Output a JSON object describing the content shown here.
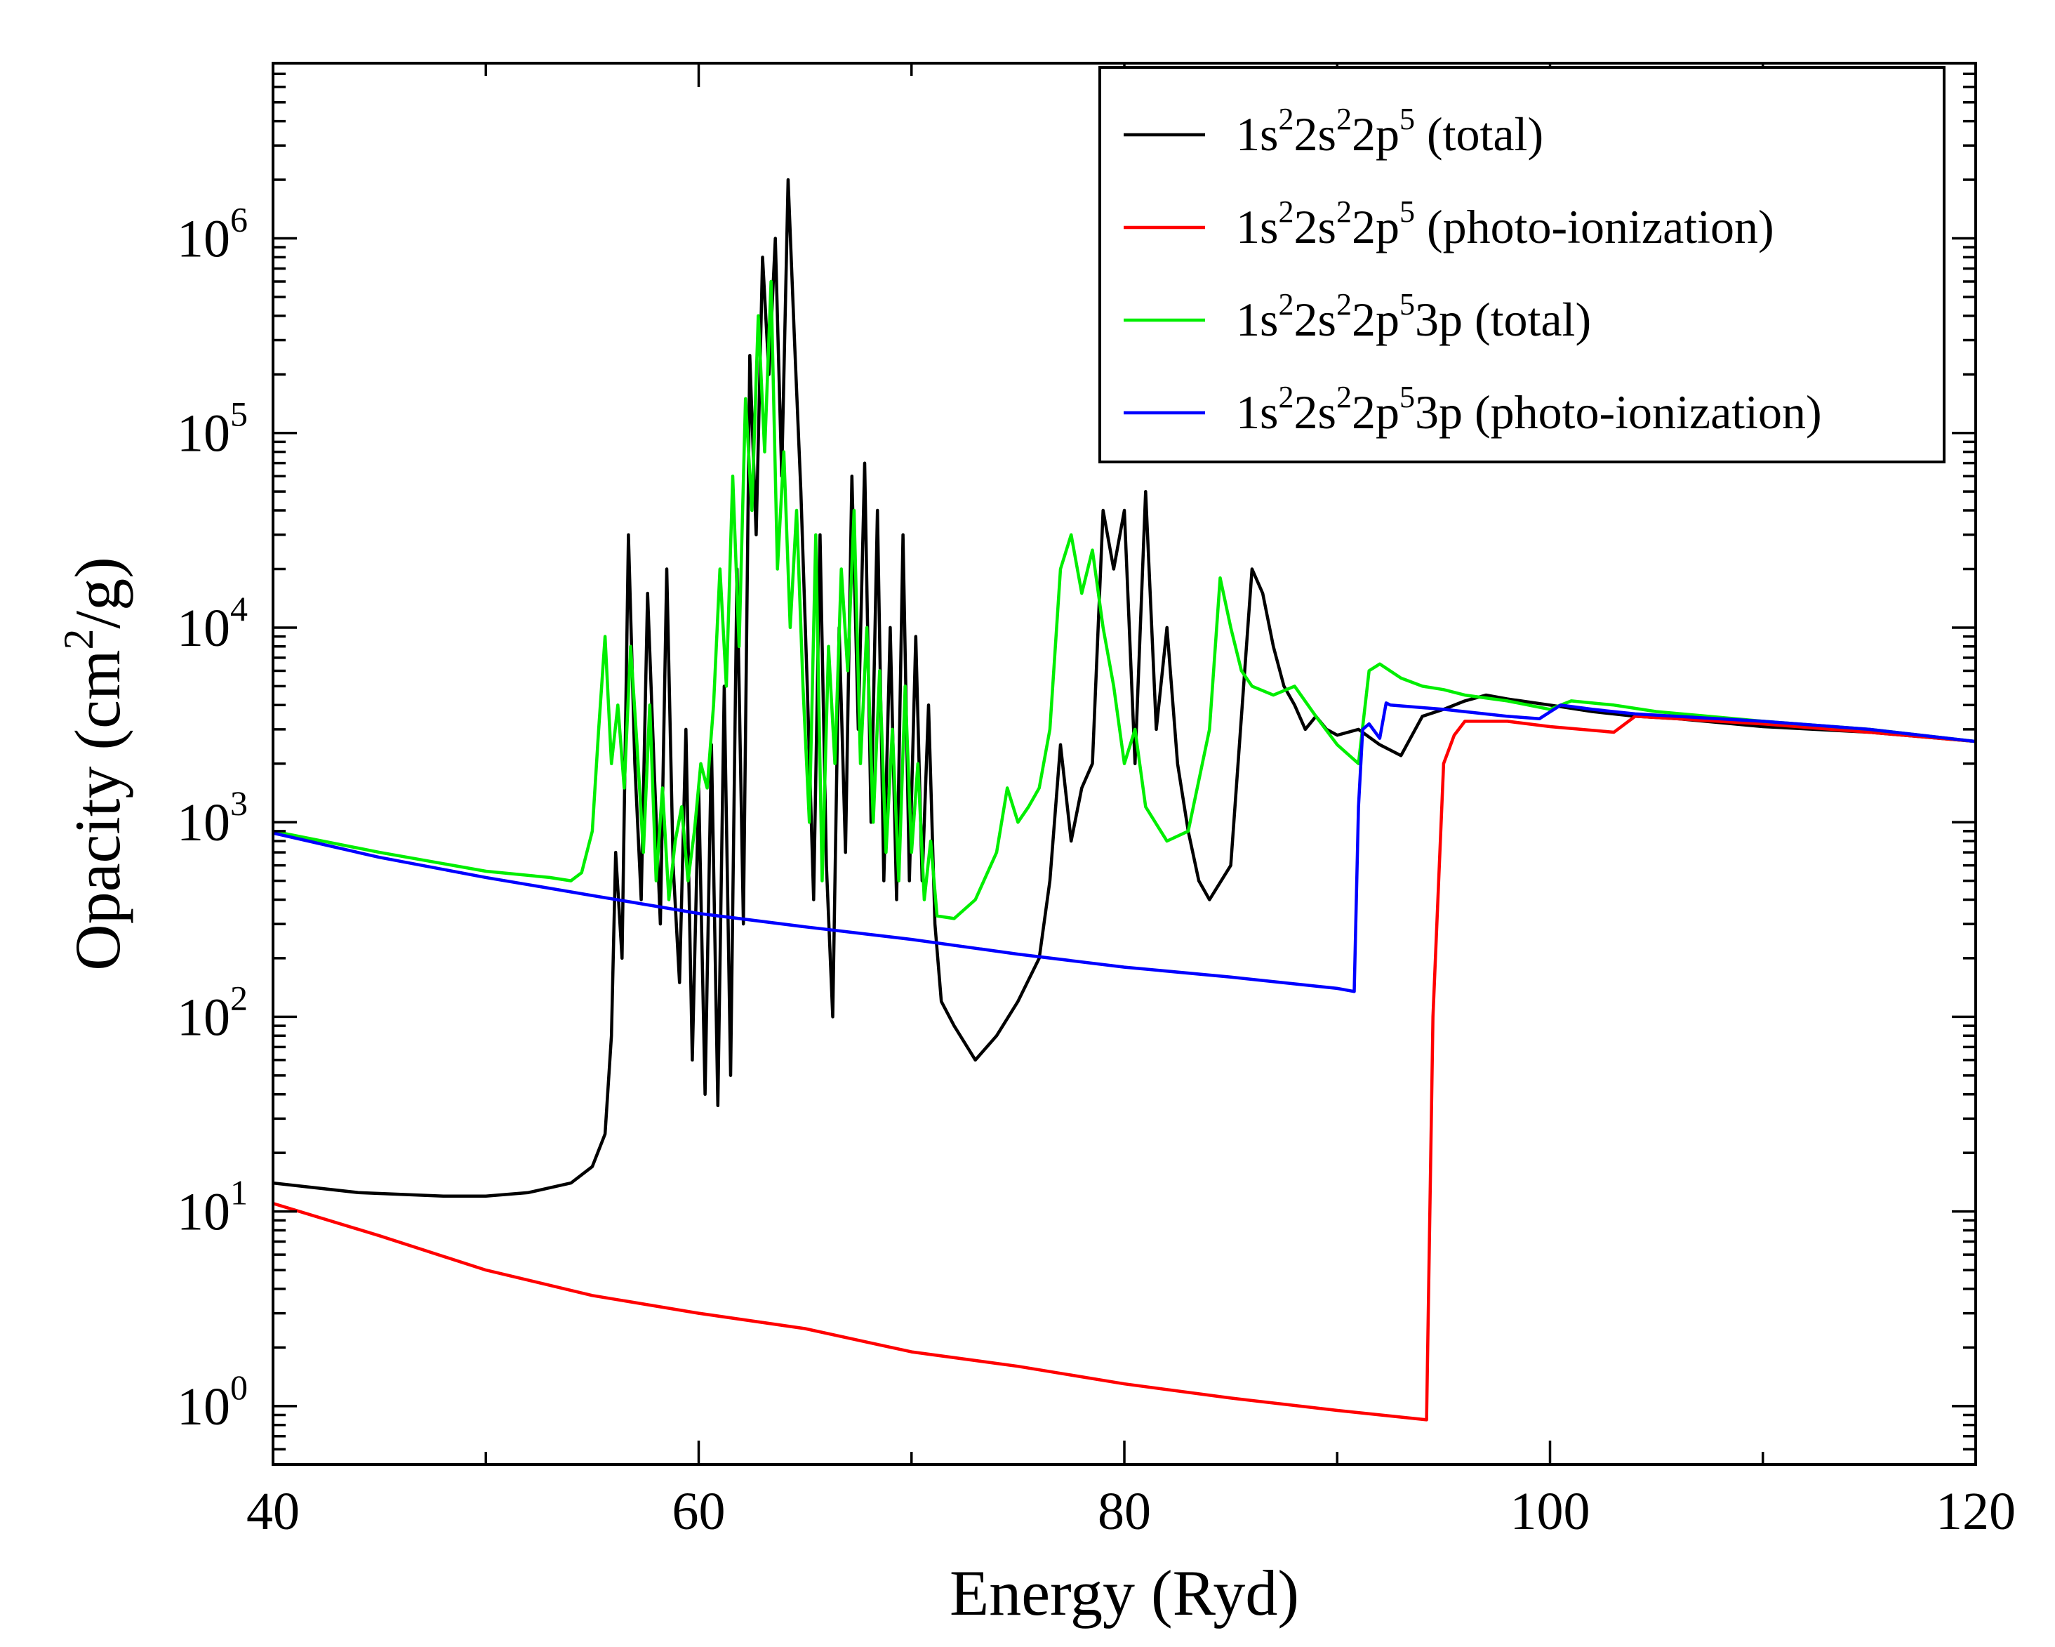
{
  "chart_data": {
    "type": "line",
    "title": "",
    "xlabel": "Energy (Ryd)",
    "ylabel": {
      "prefix": "Opacity (cm",
      "sup": "2",
      "suffix": "/g)"
    },
    "xlim": [
      40,
      120
    ],
    "ylim_log10": [
      -0.3,
      6.9
    ],
    "yscale": "log",
    "x_ticks": [
      40,
      60,
      80,
      100,
      120
    ],
    "x_tick_labels": [
      "40",
      "60",
      "80",
      "100",
      "120"
    ],
    "y_ticks_log10": [
      0,
      1,
      2,
      3,
      4,
      5,
      6
    ],
    "y_tick_labels": [
      {
        "base": "10",
        "exp": "0"
      },
      {
        "base": "10",
        "exp": "1"
      },
      {
        "base": "10",
        "exp": "2"
      },
      {
        "base": "10",
        "exp": "3"
      },
      {
        "base": "10",
        "exp": "4"
      },
      {
        "base": "10",
        "exp": "5"
      },
      {
        "base": "10",
        "exp": "6"
      }
    ],
    "legend_position": "top-right",
    "series": [
      {
        "name": "1s22s22p5 (total)",
        "label": [
          {
            "t": "1s"
          },
          {
            "t": "2",
            "sup": true
          },
          {
            "t": "2s"
          },
          {
            "t": "2",
            "sup": true
          },
          {
            "t": "2p"
          },
          {
            "t": "5",
            "sup": true
          },
          {
            "t": " (total)"
          }
        ],
        "color": "#000000",
        "x": [
          40,
          44,
          48,
          50,
          52,
          54,
          55,
          55.6,
          55.9,
          56.1,
          56.4,
          56.7,
          57.0,
          57.3,
          57.6,
          57.9,
          58.2,
          58.5,
          58.8,
          59.1,
          59.4,
          59.7,
          60.0,
          60.3,
          60.6,
          60.9,
          61.2,
          61.5,
          61.8,
          62.1,
          62.4,
          62.7,
          63.0,
          63.3,
          63.6,
          63.9,
          64.2,
          64.5,
          64.8,
          65.1,
          65.4,
          65.7,
          66.0,
          66.3,
          66.6,
          66.9,
          67.2,
          67.5,
          67.8,
          68.1,
          68.4,
          68.7,
          69.0,
          69.3,
          69.6,
          69.9,
          70.2,
          70.5,
          70.8,
          71.1,
          71.4,
          72.0,
          73.0,
          74.0,
          75.0,
          76.0,
          76.5,
          77.0,
          77.5,
          78.0,
          78.5,
          79.0,
          79.5,
          80.0,
          80.5,
          81.0,
          81.5,
          82.0,
          82.5,
          83.0,
          83.5,
          84.0,
          85.0,
          86.0,
          86.5,
          87.0,
          87.5,
          88.0,
          88.5,
          89.0,
          89.5,
          90.0,
          91.0,
          92.0,
          93.0,
          94.0,
          95.0,
          96.0,
          97.0,
          98.0,
          100.0,
          102.0,
          104.0,
          106.0,
          110.0,
          115.0,
          120.0
        ],
        "y": [
          14,
          12.5,
          12,
          12,
          12.5,
          14,
          17,
          25,
          80,
          700,
          200,
          30000,
          2000,
          400,
          15000,
          2000,
          300,
          20000,
          600,
          150,
          3000,
          60,
          1500,
          40,
          2500,
          35,
          5000,
          50,
          20000,
          300,
          250000,
          30000,
          800000,
          200000,
          1000000,
          60000,
          2000000,
          300000,
          50000,
          5000,
          400,
          30000,
          600,
          100,
          10000,
          700,
          60000,
          3000,
          70000,
          1000,
          40000,
          500,
          10000,
          400,
          30000,
          500,
          9000,
          500,
          4000,
          300,
          120,
          90,
          60,
          80,
          120,
          200,
          500,
          2500,
          800,
          1500,
          2000,
          40000,
          20000,
          40000,
          2000,
          50000,
          3000,
          10000,
          2000,
          900,
          500,
          400,
          600,
          20000,
          15000,
          8000,
          5000,
          4000,
          3000,
          3500,
          3000,
          2800,
          3000,
          2500,
          2200,
          3500,
          3800,
          4200,
          4500,
          4300,
          4000,
          3700,
          3500,
          3400,
          3100,
          2900,
          2600
        ]
      },
      {
        "name": "1s22s22p5 (photo-ionization)",
        "label": [
          {
            "t": "1s"
          },
          {
            "t": "2",
            "sup": true
          },
          {
            "t": "2s"
          },
          {
            "t": "2",
            "sup": true
          },
          {
            "t": "2p"
          },
          {
            "t": "5",
            "sup": true
          },
          {
            "t": " (photo-ionization)"
          }
        ],
        "color": "#ff0000",
        "x": [
          40,
          45,
          50,
          55,
          60,
          65,
          70,
          75,
          80,
          85,
          90,
          94.2,
          94.5,
          95.0,
          95.5,
          96.0,
          98.0,
          100.0,
          103.0,
          104.0,
          110.0,
          115.0,
          120.0
        ],
        "y": [
          11,
          7.5,
          5,
          3.7,
          3,
          2.5,
          1.9,
          1.6,
          1.3,
          1.1,
          0.95,
          0.85,
          100,
          2000,
          2800,
          3300,
          3300,
          3100,
          2900,
          3500,
          3200,
          2900,
          2600
        ]
      },
      {
        "name": "1s22s22p53p (total)",
        "label": [
          {
            "t": "1s"
          },
          {
            "t": "2",
            "sup": true
          },
          {
            "t": "2s"
          },
          {
            "t": "2",
            "sup": true
          },
          {
            "t": "2p"
          },
          {
            "t": "5",
            "sup": true
          },
          {
            "t": "3p (total)"
          }
        ],
        "color": "#00ee00",
        "x": [
          40,
          45,
          50,
          53,
          54,
          54.5,
          55,
          55.3,
          55.6,
          55.9,
          56.2,
          56.5,
          56.8,
          57.1,
          57.4,
          57.7,
          58.0,
          58.3,
          58.6,
          58.9,
          59.2,
          59.5,
          59.8,
          60.1,
          60.4,
          60.7,
          61.0,
          61.3,
          61.6,
          61.9,
          62.2,
          62.5,
          62.8,
          63.1,
          63.4,
          63.7,
          64.0,
          64.3,
          64.6,
          64.9,
          65.2,
          65.5,
          65.8,
          66.1,
          66.4,
          66.7,
          67.0,
          67.3,
          67.6,
          67.9,
          68.2,
          68.5,
          68.8,
          69.1,
          69.4,
          69.7,
          70.0,
          70.3,
          70.6,
          70.9,
          71.2,
          72.0,
          73.0,
          74.0,
          74.5,
          75.0,
          75.5,
          76.0,
          76.5,
          77.0,
          77.5,
          78.0,
          78.5,
          79.0,
          79.5,
          80.0,
          80.5,
          81.0,
          82.0,
          83.0,
          84.0,
          84.5,
          85.0,
          85.5,
          86.0,
          87.0,
          88.0,
          89.0,
          90.0,
          91.0,
          91.5,
          92.0,
          93.0,
          94.0,
          95.0,
          96.0,
          98.0,
          100.0,
          101.0,
          103.0,
          105.0,
          110.0,
          115.0,
          120.0
        ],
        "y": [
          900,
          700,
          560,
          520,
          500,
          550,
          900,
          3000,
          9000,
          2000,
          4000,
          1500,
          8000,
          2500,
          700,
          4000,
          500,
          1500,
          400,
          800,
          1200,
          500,
          900,
          2000,
          1500,
          4000,
          20000,
          5000,
          60000,
          8000,
          150000,
          40000,
          400000,
          80000,
          600000,
          20000,
          80000,
          10000,
          40000,
          5000,
          1000,
          30000,
          500,
          8000,
          2000,
          20000,
          6000,
          40000,
          2000,
          10000,
          1000,
          6000,
          700,
          3000,
          500,
          5000,
          700,
          2000,
          400,
          800,
          330,
          320,
          400,
          700,
          1500,
          1000,
          1200,
          1500,
          3000,
          20000,
          30000,
          15000,
          25000,
          10000,
          5000,
          2000,
          3000,
          1200,
          800,
          900,
          3000,
          18000,
          10000,
          6000,
          5000,
          4500,
          5000,
          3500,
          2500,
          2000,
          6000,
          6500,
          5500,
          5000,
          4800,
          4500,
          4200,
          3800,
          4200,
          4000,
          3700,
          3300,
          3000,
          2600
        ]
      },
      {
        "name": "1s22s22p53p (photo-ionization)",
        "label": [
          {
            "t": "1s"
          },
          {
            "t": "2",
            "sup": true
          },
          {
            "t": "2s"
          },
          {
            "t": "2",
            "sup": true
          },
          {
            "t": "2p"
          },
          {
            "t": "5",
            "sup": true
          },
          {
            "t": "3p (photo-ionization)"
          }
        ],
        "color": "#0000ff",
        "x": [
          40,
          45,
          50,
          55,
          60,
          65,
          70,
          75,
          80,
          85,
          90,
          90.8,
          91.0,
          91.2,
          91.5,
          92.0,
          92.3,
          92.5,
          95.0,
          98.0,
          99.5,
          100.5,
          102.0,
          104.0,
          110.0,
          115.0,
          120.0
        ],
        "y": [
          880,
          660,
          520,
          420,
          340,
          290,
          250,
          210,
          180,
          160,
          140,
          135,
          1200,
          3000,
          3200,
          2700,
          4100,
          4000,
          3800,
          3500,
          3400,
          4000,
          3800,
          3600,
          3300,
          3000,
          2600
        ]
      }
    ]
  }
}
